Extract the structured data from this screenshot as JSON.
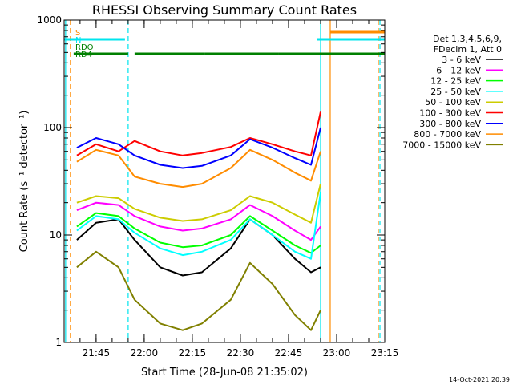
{
  "chart_data": {
    "type": "line",
    "title": "RHESSI Observing Summary Count Rates",
    "xlabel": "Start Time (28-Jun-08 21:35:02)",
    "ylabel": "Count Rate (s⁻¹ detector⁻¹)",
    "yscale": "log",
    "xlim": [
      "21:35:02",
      "23:15"
    ],
    "ylim": [
      1,
      1000
    ],
    "x_ticks": [
      "21:45",
      "22:00",
      "22:15",
      "22:30",
      "22:45",
      "23:00",
      "23:15"
    ],
    "y_ticks": [
      "1",
      "10",
      "100",
      "1000"
    ],
    "legend_header": [
      "Det 1,3,4,5,6,9,",
      "FDecim 1, Att 0"
    ],
    "legend_position": "right",
    "series": [
      {
        "name": "3 - 6 keV",
        "color": "#000000",
        "times": [
          "21:39",
          "21:45",
          "21:52",
          "21:57",
          "22:05",
          "22:12",
          "22:18",
          "22:27",
          "22:33",
          "22:40",
          "22:47",
          "22:52",
          "22:55"
        ],
        "values": [
          9,
          13,
          14,
          9,
          5,
          4.2,
          4.5,
          7.5,
          14,
          10,
          6,
          4.5,
          5
        ]
      },
      {
        "name": "6 - 12 keV",
        "color": "#ff00ff",
        "times": [
          "21:39",
          "21:45",
          "21:52",
          "21:57",
          "22:05",
          "22:12",
          "22:18",
          "22:27",
          "22:33",
          "22:40",
          "22:47",
          "22:52",
          "22:55"
        ],
        "values": [
          17,
          20,
          19,
          15,
          12,
          11,
          11.5,
          14,
          19,
          15,
          11,
          9,
          12
        ]
      },
      {
        "name": "12 - 25 keV",
        "color": "#00ff00",
        "times": [
          "21:39",
          "21:45",
          "21:52",
          "21:57",
          "22:05",
          "22:12",
          "22:18",
          "22:27",
          "22:33",
          "22:40",
          "22:47",
          "22:52",
          "22:55"
        ],
        "values": [
          12,
          16,
          15,
          11.5,
          8.5,
          7.7,
          8,
          10,
          15,
          11,
          8,
          6.8,
          8
        ]
      },
      {
        "name": "25 - 50 keV",
        "color": "#00ffff",
        "times": [
          "21:39",
          "21:45",
          "21:52",
          "21:57",
          "22:05",
          "22:12",
          "22:18",
          "22:27",
          "22:33",
          "22:40",
          "22:47",
          "22:52",
          "22:55"
        ],
        "values": [
          11,
          15,
          14,
          10.5,
          7.5,
          6.5,
          7,
          9,
          14,
          10,
          7,
          6,
          25
        ]
      },
      {
        "name": "50 - 100 keV",
        "color": "#cccc00",
        "times": [
          "21:39",
          "21:45",
          "21:52",
          "21:57",
          "22:05",
          "22:12",
          "22:18",
          "22:27",
          "22:33",
          "22:40",
          "22:47",
          "22:52",
          "22:55"
        ],
        "values": [
          20,
          23,
          22,
          17.5,
          14.5,
          13.5,
          14,
          17,
          23,
          20,
          15.5,
          13,
          30
        ]
      },
      {
        "name": "100 - 300 keV",
        "color": "#ff0000",
        "times": [
          "21:39",
          "21:45",
          "21:52",
          "21:57",
          "22:05",
          "22:12",
          "22:18",
          "22:27",
          "22:33",
          "22:40",
          "22:47",
          "22:52",
          "22:55"
        ],
        "values": [
          55,
          70,
          60,
          75,
          60,
          55,
          58,
          66,
          80,
          70,
          60,
          55,
          140
        ]
      },
      {
        "name": "300 - 800 keV",
        "color": "#0000ff",
        "times": [
          "21:39",
          "21:45",
          "21:52",
          "21:57",
          "22:05",
          "22:12",
          "22:18",
          "22:27",
          "22:33",
          "22:40",
          "22:47",
          "22:52",
          "22:55"
        ],
        "values": [
          65,
          80,
          70,
          55,
          45,
          42,
          44,
          55,
          78,
          65,
          52,
          45,
          100
        ]
      },
      {
        "name": "800 - 7000 keV",
        "color": "#ff8c00",
        "times": [
          "21:39",
          "21:45",
          "21:52",
          "21:57",
          "22:05",
          "22:12",
          "22:18",
          "22:27",
          "22:33",
          "22:40",
          "22:47",
          "22:52",
          "22:55"
        ],
        "values": [
          48,
          62,
          55,
          35,
          30,
          28,
          30,
          42,
          62,
          50,
          38,
          32,
          60
        ]
      },
      {
        "name": "7000 - 15000 keV",
        "color": "#808000",
        "times": [
          "21:39",
          "21:45",
          "21:52",
          "21:57",
          "22:05",
          "22:12",
          "22:18",
          "22:27",
          "22:33",
          "22:40",
          "22:47",
          "22:52",
          "22:55"
        ],
        "values": [
          5,
          7,
          5,
          2.5,
          1.5,
          1.3,
          1.5,
          2.5,
          5.5,
          3.5,
          1.8,
          1.3,
          2
        ]
      }
    ],
    "flag_bars": [
      {
        "name": "S",
        "color": "#ff8c00",
        "segments": [
          [
            "22:58",
            "23:15"
          ]
        ]
      },
      {
        "name": "N",
        "color": "#00e5ee",
        "segments": [
          [
            "21:35:02",
            "21:54"
          ],
          [
            "22:54",
            "23:15"
          ]
        ]
      },
      {
        "name": "RDO",
        "color": "#008000",
        "segments": []
      },
      {
        "name": "RD4",
        "color": "#008000",
        "segments": [
          [
            "21:38",
            "21:55"
          ],
          [
            "21:57",
            "22:19"
          ],
          [
            "22:19",
            "22:42"
          ],
          [
            "22:42",
            "23:15"
          ]
        ]
      }
    ],
    "vertical_lines": [
      {
        "time": "21:35:30",
        "color": "#00e5ee",
        "style": "solid"
      },
      {
        "time": "21:37",
        "color": "#ff8c00",
        "style": "dashed"
      },
      {
        "time": "21:55",
        "color": "#00e5ee",
        "style": "dashed"
      },
      {
        "time": "22:55",
        "color": "#00e5ee",
        "style": "solid"
      },
      {
        "time": "22:58",
        "color": "#ff8c00",
        "style": "solid"
      },
      {
        "time": "23:13",
        "color": "#ff8c00",
        "style": "dashed"
      },
      {
        "time": "23:13:30",
        "color": "#00e5ee",
        "style": "dashed"
      }
    ],
    "grid": false
  },
  "footer_timestamp": "14-Oct-2021 20:39"
}
